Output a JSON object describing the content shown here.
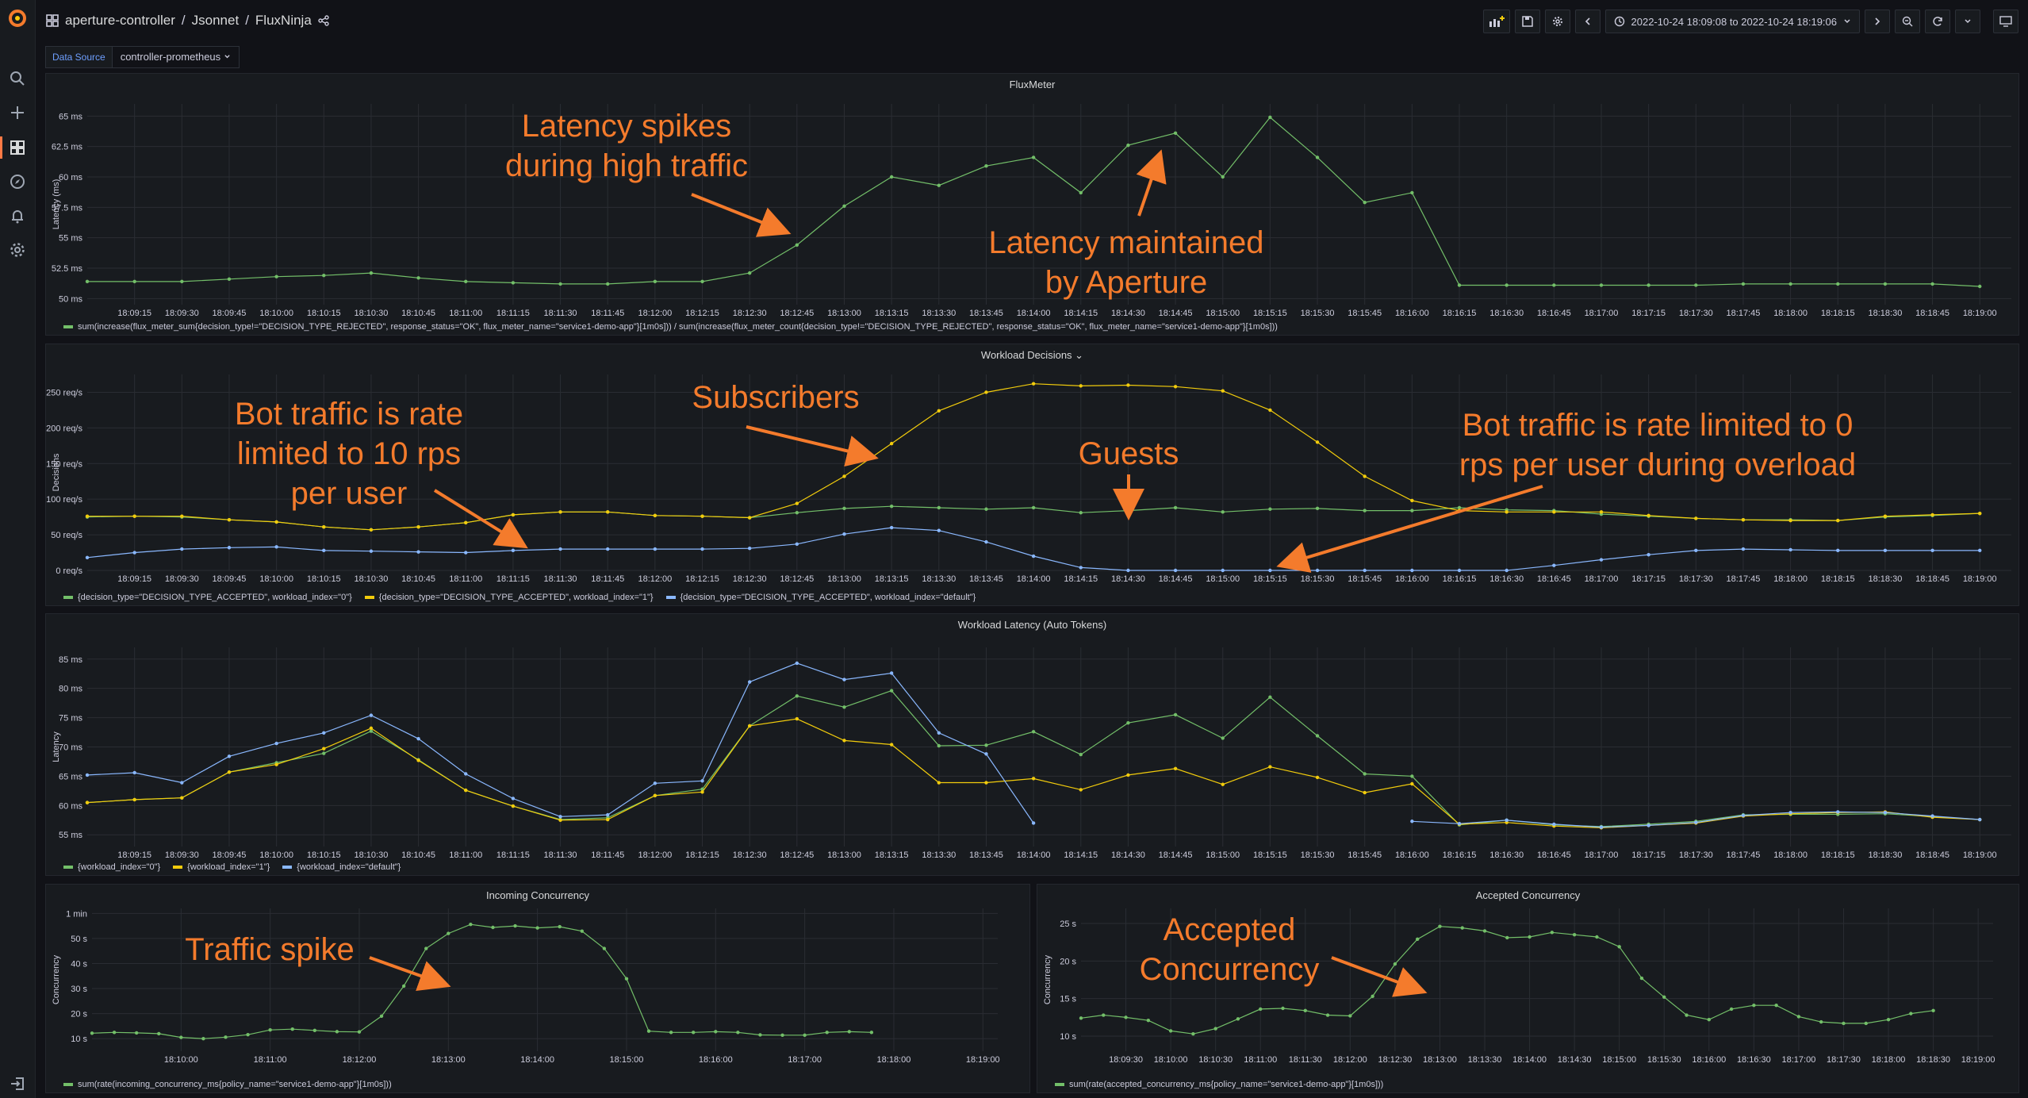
{
  "topbar": {
    "crumb_1": "aperture-controller",
    "crumb_2": "Jsonnet",
    "crumb_3": "FluxNinja",
    "time_range": "2022-10-24 18:09:08 to 2022-10-24 18:19:06"
  },
  "variables": {
    "label": "Data Source",
    "value": "controller-prometheus"
  },
  "sidebar_icons": [
    "grafana-logo",
    "search-icon",
    "plus-icon",
    "dashboards-icon",
    "compass-icon",
    "bell-icon",
    "gear-icon",
    "signin-icon"
  ],
  "colors": {
    "green": "#73bf69",
    "yellow": "#f2cc0c",
    "blue": "#8ab8ff",
    "annotation": "#f47b2c",
    "grid": "#2a2d33"
  },
  "panels": {
    "fluxmeter": {
      "title": "FluxMeter",
      "legend": [
        "sum(increase(flux_meter_sum{decision_type!=\"DECISION_TYPE_REJECTED\", response_status=\"OK\", flux_meter_name=\"service1-demo-app\"}[1m0s])) / sum(increase(flux_meter_count{decision_type!=\"DECISION_TYPE_REJECTED\", response_status=\"OK\", flux_meter_name=\"service1-demo-app\"}[1m0s]))"
      ]
    },
    "workload_decisions": {
      "title": "Workload Decisions",
      "legend": [
        "{decision_type=\"DECISION_TYPE_ACCEPTED\", workload_index=\"0\"}",
        "{decision_type=\"DECISION_TYPE_ACCEPTED\", workload_index=\"1\"}",
        "{decision_type=\"DECISION_TYPE_ACCEPTED\", workload_index=\"default\"}"
      ]
    },
    "workload_latency": {
      "title": "Workload Latency (Auto Tokens)",
      "legend": [
        "{workload_index=\"0\"}",
        "{workload_index=\"1\"}",
        "{workload_index=\"default\"}"
      ]
    },
    "incoming": {
      "title": "Incoming Concurrency",
      "legend": [
        "sum(rate(incoming_concurrency_ms{policy_name=\"service1-demo-app\"}[1m0s]))"
      ]
    },
    "accepted": {
      "title": "Accepted Concurrency",
      "legend": [
        "sum(rate(accepted_concurrency_ms{policy_name=\"service1-demo-app\"}[1m0s]))"
      ]
    }
  },
  "annotations": {
    "a1": "Latency spikes during high traffic",
    "a2": "Latency maintained by Aperture",
    "a3": "Bot traffic is rate limited to 10 rps per user",
    "a4": "Subscribers",
    "a5": "Guests",
    "a6": "Bot traffic is rate limited to 0 rps per user during overload",
    "a7": "Traffic spike",
    "a8": "Accepted Concurrency"
  },
  "chart_data": [
    {
      "type": "line",
      "title": "FluxMeter",
      "ylabel": "Latency (ms)",
      "ylim": [
        49.5,
        66
      ],
      "yticks": [
        50,
        52.5,
        55,
        57.5,
        60,
        62.5,
        65
      ],
      "ytick_labels": [
        "50 ms",
        "52.5 ms",
        "55 ms",
        "57.5 ms",
        "60 ms",
        "62.5 ms",
        "65 ms"
      ],
      "xlim_sec": [
        540,
        1150
      ],
      "xticks": [
        "18:09:15",
        "18:09:30",
        "18:09:45",
        "18:10:00",
        "18:10:15",
        "18:10:30",
        "18:10:45",
        "18:11:00",
        "18:11:15",
        "18:11:30",
        "18:11:45",
        "18:12:00",
        "18:12:15",
        "18:12:30",
        "18:12:45",
        "18:13:00",
        "18:13:15",
        "18:13:30",
        "18:13:45",
        "18:14:00",
        "18:14:15",
        "18:14:30",
        "18:14:45",
        "18:15:00",
        "18:15:15",
        "18:15:30",
        "18:15:45",
        "18:16:00",
        "18:16:15",
        "18:16:30",
        "18:16:45",
        "18:17:00",
        "18:17:15",
        "18:17:30",
        "18:17:45",
        "18:18:00",
        "18:18:15",
        "18:18:30",
        "18:18:45",
        "18:19:00"
      ],
      "grid": true,
      "legend_placement": "bottom",
      "series": [
        {
          "color": "#73bf69",
          "x_start_sec": 540,
          "x_step_sec": 15,
          "values": [
            51.4,
            51.4,
            51.4,
            51.6,
            51.8,
            51.9,
            52.1,
            51.7,
            51.4,
            51.3,
            51.2,
            51.2,
            51.4,
            51.4,
            52.1,
            54.4,
            57.6,
            60.0,
            59.3,
            60.9,
            61.6,
            58.7,
            62.6,
            63.6,
            60.0,
            64.9,
            61.6,
            57.9,
            58.7,
            51.1,
            51.1,
            51.1,
            51.1,
            51.1,
            51.1,
            51.2,
            51.2,
            51.2,
            51.2,
            51.2,
            51.0
          ]
        }
      ]
    },
    {
      "type": "line",
      "title": "Workload Decisions",
      "ylabel": "Decisions",
      "ylim": [
        0,
        275
      ],
      "yticks": [
        0,
        50,
        100,
        150,
        200,
        250
      ],
      "ytick_labels": [
        "0 req/s",
        "50 req/s",
        "100 req/s",
        "150 req/s",
        "200 req/s",
        "250 req/s"
      ],
      "xlim_sec": [
        540,
        1150
      ],
      "xticks": [
        "18:09:15",
        "18:09:30",
        "18:09:45",
        "18:10:00",
        "18:10:15",
        "18:10:30",
        "18:10:45",
        "18:11:00",
        "18:11:15",
        "18:11:30",
        "18:11:45",
        "18:12:00",
        "18:12:15",
        "18:12:30",
        "18:12:45",
        "18:13:00",
        "18:13:15",
        "18:13:30",
        "18:13:45",
        "18:14:00",
        "18:14:15",
        "18:14:30",
        "18:14:45",
        "18:15:00",
        "18:15:15",
        "18:15:30",
        "18:15:45",
        "18:16:00",
        "18:16:15",
        "18:16:30",
        "18:16:45",
        "18:17:00",
        "18:17:15",
        "18:17:30",
        "18:17:45",
        "18:18:00",
        "18:18:15",
        "18:18:30",
        "18:18:45",
        "18:19:00"
      ],
      "grid": true,
      "legend_placement": "bottom",
      "series": [
        {
          "color": "#73bf69",
          "x_start_sec": 540,
          "x_step_sec": 15,
          "values": [
            75,
            76,
            75,
            71,
            68,
            61,
            57,
            61,
            67,
            78,
            82,
            82,
            77,
            76,
            74,
            81,
            87,
            90,
            88,
            86,
            88,
            81,
            84,
            88,
            82,
            86,
            87,
            84,
            84,
            88,
            85,
            84,
            79,
            76,
            73,
            71,
            71,
            70,
            75,
            77,
            80
          ]
        },
        {
          "color": "#f2cc0c",
          "x_start_sec": 540,
          "x_step_sec": 15,
          "values": [
            76,
            76,
            76,
            71,
            68,
            61,
            57,
            61,
            67,
            78,
            82,
            82,
            77,
            76,
            74,
            94,
            132,
            178,
            224,
            250,
            262,
            259,
            260,
            258,
            252,
            225,
            180,
            132,
            98,
            84,
            82,
            82,
            82,
            77,
            73,
            71,
            70,
            70,
            76,
            78,
            80
          ]
        },
        {
          "color": "#8ab8ff",
          "x_start_sec": 540,
          "x_step_sec": 15,
          "values": [
            18,
            25,
            30,
            32,
            33,
            28,
            27,
            26,
            25,
            28,
            30,
            30,
            30,
            30,
            31,
            37,
            51,
            60,
            56,
            40,
            20,
            4,
            0,
            0,
            0,
            0,
            0,
            0,
            0,
            0,
            0,
            7,
            15,
            22,
            28,
            30,
            29,
            28,
            28,
            28,
            28,
            28,
            28
          ]
        }
      ]
    },
    {
      "type": "line",
      "title": "Workload Latency (Auto Tokens)",
      "ylabel": "Latency",
      "ylim": [
        53,
        87
      ],
      "yticks": [
        55,
        60,
        65,
        70,
        75,
        80,
        85
      ],
      "ytick_labels": [
        "55 ms",
        "60 ms",
        "65 ms",
        "70 ms",
        "75 ms",
        "80 ms",
        "85 ms"
      ],
      "xlim_sec": [
        540,
        1150
      ],
      "xticks": [
        "18:09:15",
        "18:09:30",
        "18:09:45",
        "18:10:00",
        "18:10:15",
        "18:10:30",
        "18:10:45",
        "18:11:00",
        "18:11:15",
        "18:11:30",
        "18:11:45",
        "18:12:00",
        "18:12:15",
        "18:12:30",
        "18:12:45",
        "18:13:00",
        "18:13:15",
        "18:13:30",
        "18:13:45",
        "18:14:00",
        "18:14:15",
        "18:14:30",
        "18:14:45",
        "18:15:00",
        "18:15:15",
        "18:15:30",
        "18:15:45",
        "18:16:00",
        "18:16:15",
        "18:16:30",
        "18:16:45",
        "18:17:00",
        "18:17:15",
        "18:17:30",
        "18:17:45",
        "18:18:00",
        "18:18:15",
        "18:18:30",
        "18:18:45",
        "18:19:00"
      ],
      "grid": true,
      "legend_placement": "bottom",
      "series": [
        {
          "color": "#73bf69",
          "x_start_sec": 540,
          "x_step_sec": 15,
          "values": [
            60.5,
            61.0,
            61.3,
            65.7,
            67.3,
            68.9,
            72.7,
            67.8,
            62.6,
            59.9,
            57.6,
            57.9,
            61.7,
            62.8,
            73.6,
            78.7,
            76.8,
            79.6,
            70.2,
            70.3,
            72.6,
            68.7,
            74.1,
            75.5,
            71.5,
            78.5,
            71.9,
            65.4,
            65.0,
            56.7,
            57.5,
            56.7,
            56.4,
            56.8,
            57.3,
            58.4,
            58.5,
            58.5,
            58.6,
            58.1,
            57.6
          ]
        },
        {
          "color": "#f2cc0c",
          "x_start_sec": 540,
          "x_step_sec": 15,
          "values": [
            60.5,
            61.0,
            61.3,
            65.7,
            67.0,
            69.7,
            73.2,
            67.7,
            62.6,
            59.9,
            57.5,
            57.6,
            61.7,
            62.3,
            73.6,
            74.8,
            71.1,
            70.4,
            63.9,
            63.9,
            64.6,
            62.7,
            65.2,
            66.3,
            63.6,
            66.6,
            64.8,
            62.2,
            63.7,
            56.8,
            57.1,
            56.5,
            56.2,
            56.6,
            57.0,
            58.2,
            58.6,
            58.8,
            58.9,
            58.0,
            57.6
          ]
        },
        {
          "color": "#8ab8ff",
          "x_start_sec": 540,
          "x_step_sec": 15,
          "values": [
            65.2,
            65.6,
            63.9,
            68.4,
            70.6,
            72.4,
            75.4,
            71.4,
            65.4,
            61.2,
            58.1,
            58.4,
            63.8,
            64.2,
            81.1,
            84.3,
            81.5,
            82.6,
            72.4,
            68.8,
            57.0,
            null,
            null,
            null,
            null,
            null,
            null,
            null,
            57.3,
            56.9,
            57.5,
            56.8,
            56.3,
            56.6,
            57.1,
            58.3,
            58.8,
            58.9,
            58.8,
            58.2,
            57.6
          ]
        }
      ]
    },
    {
      "type": "line",
      "title": "Incoming Concurrency",
      "ylabel": "Concurrency",
      "ylim": [
        5,
        62
      ],
      "yticks": [
        10,
        20,
        30,
        40,
        50,
        60
      ],
      "ytick_labels": [
        "10 s",
        "20 s",
        "30 s",
        "40 s",
        "50 s",
        "1 min"
      ],
      "xlim_sec": [
        540,
        1150
      ],
      "xticks": [
        "18:10:00",
        "18:11:00",
        "18:12:00",
        "18:13:00",
        "18:14:00",
        "18:15:00",
        "18:16:00",
        "18:17:00",
        "18:18:00",
        "18:19:00"
      ],
      "grid": true,
      "legend_placement": "bottom",
      "series": [
        {
          "color": "#73bf69",
          "x_start_sec": 540,
          "x_step_sec": 15,
          "values": [
            12.2,
            12.5,
            12.3,
            12.0,
            10.5,
            10.0,
            10.6,
            11.6,
            13.5,
            13.8,
            13.3,
            12.8,
            12.7,
            19.0,
            31.0,
            46.0,
            52.0,
            55.6,
            54.4,
            55.0,
            54.2,
            54.7,
            52.9,
            46.0,
            33.9,
            13.0,
            12.5,
            12.5,
            12.8,
            12.5,
            11.5,
            11.4,
            11.4,
            12.5,
            12.8,
            12.5
          ]
        }
      ]
    },
    {
      "type": "line",
      "title": "Accepted Concurrency",
      "ylabel": "Concurrency",
      "ylim": [
        8,
        27
      ],
      "yticks": [
        10,
        15,
        20,
        25
      ],
      "ytick_labels": [
        "10 s",
        "15 s",
        "20 s",
        "25 s"
      ],
      "xlim_sec": [
        540,
        1150
      ],
      "xticks": [
        "18:09:30",
        "18:10:00",
        "18:10:30",
        "18:11:00",
        "18:11:30",
        "18:12:00",
        "18:12:30",
        "18:13:00",
        "18:13:30",
        "18:14:00",
        "18:14:30",
        "18:15:00",
        "18:15:30",
        "18:16:00",
        "18:16:30",
        "18:17:00",
        "18:17:30",
        "18:18:00",
        "18:18:30",
        "18:19:00"
      ],
      "grid": true,
      "legend_placement": "bottom",
      "series": [
        {
          "color": "#73bf69",
          "x_start_sec": 540,
          "x_step_sec": 15,
          "values": [
            12.4,
            12.8,
            12.5,
            12.1,
            10.7,
            10.3,
            11.0,
            12.3,
            13.6,
            13.7,
            13.4,
            12.8,
            12.7,
            15.3,
            19.6,
            22.9,
            24.6,
            24.4,
            24.0,
            23.1,
            23.2,
            23.8,
            23.5,
            23.2,
            21.9,
            17.7,
            15.2,
            12.8,
            12.2,
            13.6,
            14.1,
            14.1,
            12.6,
            11.9,
            11.7,
            11.7,
            12.2,
            13.0,
            13.4
          ]
        }
      ]
    }
  ]
}
